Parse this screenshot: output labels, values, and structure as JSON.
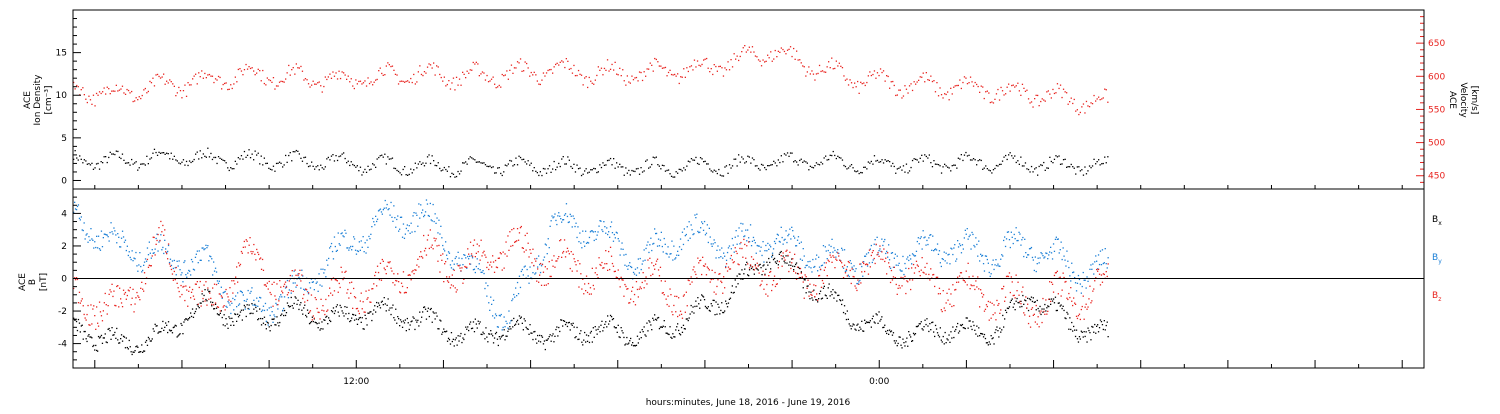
{
  "xaxis": {
    "label": "hours:minutes, June 18, 2016 - June 19, 2016",
    "ticks": [
      {
        "t": 12,
        "label": "12:00"
      },
      {
        "t": 24,
        "label": "0:00"
      }
    ],
    "range_hours": [
      5.5,
      36.5
    ],
    "data_end_hours": 29.25
  },
  "chart_data": [
    {
      "type": "scatter",
      "panel": "top",
      "ylabel_left": [
        "ACE",
        "Ion Density",
        "[cm⁻³]"
      ],
      "ylabel_right": [
        "ACE",
        "Velocity",
        "[km/s]"
      ],
      "left_axis": {
        "ylim": [
          -1,
          20
        ],
        "ticks": [
          0,
          5,
          10,
          15
        ],
        "color": "#000000"
      },
      "right_axis": {
        "ylim": [
          430,
          700
        ],
        "ticks": [
          450,
          500,
          550,
          600,
          650
        ],
        "color": "#e8231f"
      },
      "series": [
        {
          "key": "density",
          "axis": "left",
          "color": "#000000",
          "x": [
            5.5,
            6.5,
            7.5,
            8.5,
            9.5,
            10.5,
            11.5,
            12.5,
            13.5,
            14.5,
            15.5,
            16.5,
            17.5,
            18.5,
            19.5,
            20.5,
            21.5,
            22.5,
            23.5,
            24.5,
            25.5,
            26.5,
            27.5,
            28.5,
            29.25
          ],
          "y": [
            2.5,
            2.3,
            2.8,
            2.6,
            2.5,
            2.3,
            2.2,
            1.9,
            1.8,
            1.7,
            1.7,
            1.7,
            1.6,
            1.5,
            1.7,
            1.9,
            2.1,
            2.4,
            2.0,
            1.9,
            2.1,
            2.2,
            2.0,
            1.8,
            1.7
          ],
          "spread": 1.2
        },
        {
          "key": "velocity",
          "axis": "right",
          "color": "#e8231f",
          "x": [
            5.5,
            6.5,
            7.5,
            8.5,
            9.5,
            10.5,
            11.5,
            12.5,
            13.5,
            14.5,
            15.5,
            16.5,
            17.5,
            18.5,
            19.5,
            20.5,
            21.5,
            22.5,
            23.5,
            24.5,
            25.5,
            26.5,
            27.5,
            28.5,
            29.25
          ],
          "y": [
            580,
            575,
            585,
            595,
            605,
            600,
            595,
            600,
            605,
            600,
            605,
            610,
            605,
            605,
            610,
            620,
            640,
            615,
            595,
            590,
            585,
            580,
            575,
            565,
            560
          ],
          "spread": 20
        }
      ]
    },
    {
      "type": "scatter",
      "panel": "bottom",
      "ylabel_left": [
        "ACE",
        "B",
        "[nT]"
      ],
      "left_axis": {
        "ylim": [
          -5.5,
          5.5
        ],
        "ticks": [
          -4,
          -2,
          0,
          2,
          4
        ],
        "color": "#000000"
      },
      "zero_line": true,
      "legend_placement": "right",
      "series": [
        {
          "name": "Bx",
          "key": "bx",
          "color": "#000000",
          "x": [
            5.5,
            6.5,
            7.5,
            8.5,
            9.5,
            10.5,
            11.5,
            12.5,
            13.5,
            14.5,
            15.5,
            16.5,
            17.5,
            18.5,
            19.5,
            20.5,
            21.5,
            22.5,
            23.5,
            24.5,
            25.5,
            26.5,
            27.5,
            28.5,
            29.25
          ],
          "y": [
            -3.0,
            -4.0,
            -3.5,
            -1.5,
            -2.5,
            -2.0,
            -2.5,
            -2.0,
            -2.5,
            -3.5,
            -3.0,
            -3.5,
            -3.0,
            -3.5,
            -2.5,
            -1.0,
            1.5,
            -0.5,
            -2.5,
            -3.5,
            -3.0,
            -3.5,
            -1.0,
            -3.0,
            -3.5
          ],
          "spread": 0.9
        },
        {
          "name": "By",
          "key": "by",
          "color": "#1b7fd6",
          "x": [
            5.5,
            6.5,
            7.5,
            8.5,
            9.5,
            10.5,
            11.5,
            12.5,
            13.5,
            14.5,
            15.5,
            16.5,
            17.5,
            18.5,
            19.5,
            20.5,
            21.5,
            22.5,
            23.5,
            24.5,
            25.5,
            26.5,
            27.5,
            28.5,
            29.25
          ],
          "y": [
            4.0,
            2.0,
            1.5,
            1.0,
            -2.0,
            -1.0,
            1.5,
            3.5,
            4.0,
            1.0,
            -2.5,
            3.5,
            3.0,
            1.0,
            3.0,
            2.0,
            2.5,
            1.5,
            1.0,
            1.5,
            2.0,
            1.5,
            2.0,
            0.5,
            0.5
          ],
          "spread": 1.3
        },
        {
          "name": "Bz",
          "key": "bz",
          "color": "#e8231f",
          "x": [
            5.5,
            6.5,
            7.5,
            8.5,
            9.5,
            10.5,
            11.5,
            12.5,
            13.5,
            14.5,
            15.5,
            16.5,
            17.5,
            18.5,
            19.5,
            20.5,
            21.5,
            22.5,
            23.5,
            24.5,
            25.5,
            26.5,
            27.5,
            28.5,
            29.25
          ],
          "y": [
            -1.0,
            -2.0,
            2.0,
            -2.0,
            1.5,
            -1.0,
            -1.0,
            -0.5,
            1.5,
            0.5,
            2.0,
            1.0,
            0.5,
            0.0,
            -1.0,
            1.0,
            0.5,
            0.0,
            1.0,
            0.5,
            -0.5,
            -1.0,
            -1.5,
            -1.0,
            -0.5
          ],
          "spread": 1.6
        }
      ]
    }
  ],
  "legend": [
    {
      "label": "B",
      "sub": "x",
      "color": "#000000"
    },
    {
      "label": "B",
      "sub": "y",
      "color": "#1b7fd6"
    },
    {
      "label": "B",
      "sub": "z",
      "color": "#e8231f"
    }
  ]
}
